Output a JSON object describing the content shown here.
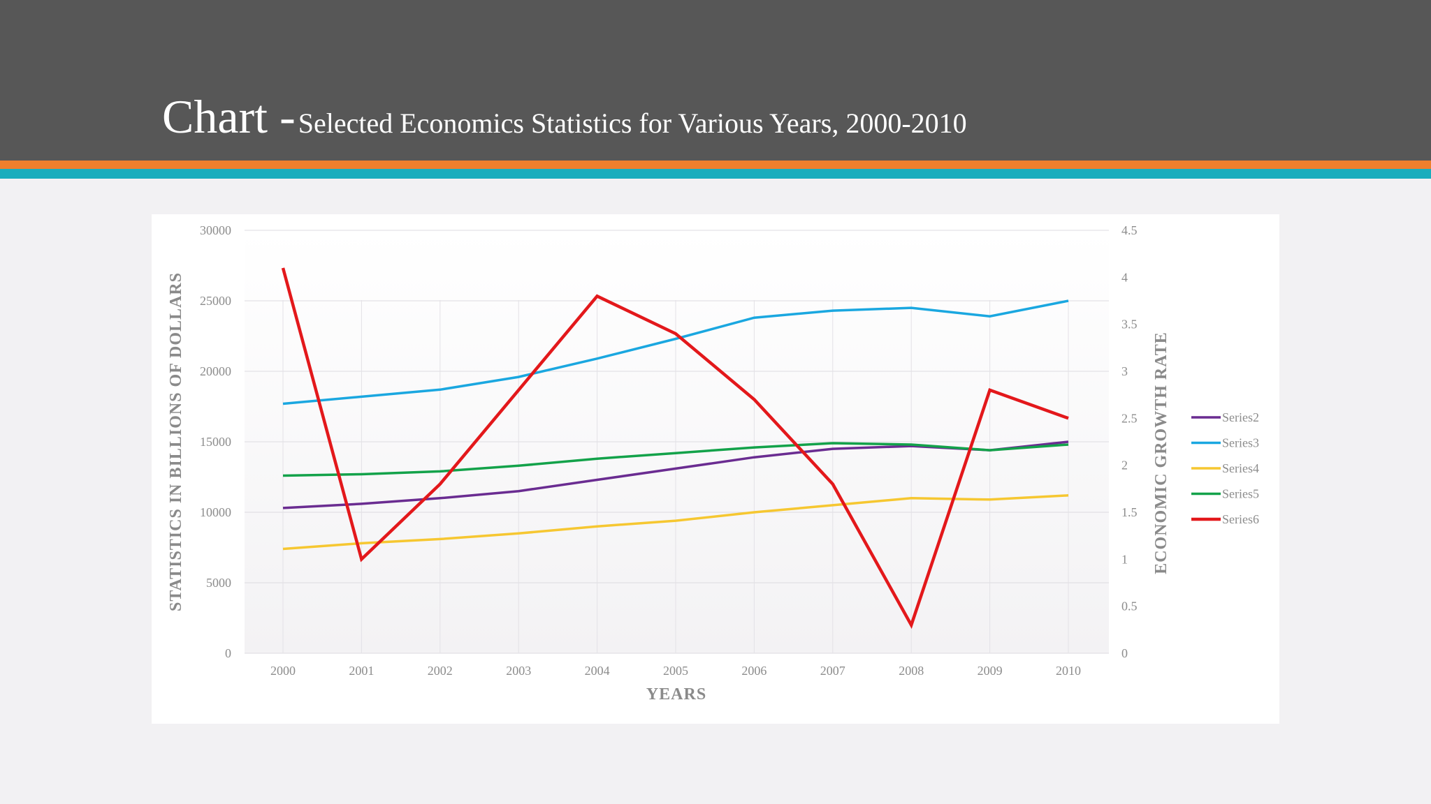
{
  "slide": {
    "title_main": "Chart -",
    "title_sub": "Selected Economics Statistics for Various Years, 2000-2010",
    "header_color": "#575757",
    "stripe_colors": [
      "#ee7f2d",
      "#19adbd"
    ]
  },
  "chart_data": {
    "type": "line",
    "title": "",
    "xlabel": "YEARS",
    "ylabel": "STATISTICS IN BILLIONS OF DOLLARS",
    "y2label": "ECONOMIC GROWTH RATE",
    "categories": [
      "2000",
      "2001",
      "2002",
      "2003",
      "2004",
      "2005",
      "2006",
      "2007",
      "2008",
      "2009",
      "2010"
    ],
    "ylim": [
      0,
      30000
    ],
    "yticks": [
      "0",
      "5000",
      "10000",
      "15000",
      "20000",
      "25000",
      "30000"
    ],
    "y2lim": [
      0,
      4.5
    ],
    "y2ticks": [
      "0",
      "0.5",
      "1",
      "1.5",
      "2",
      "2.5",
      "3",
      "3.5",
      "4",
      "4.5"
    ],
    "grid": true,
    "legend_position": "right",
    "series": [
      {
        "name": "Series2",
        "axis": "left",
        "color": "#6a2c91",
        "values": [
          10300,
          10600,
          11000,
          11500,
          12300,
          13100,
          13900,
          14500,
          14700,
          14400,
          15000
        ]
      },
      {
        "name": "Series3",
        "axis": "left",
        "color": "#1aa7e0",
        "values": [
          17700,
          18200,
          18700,
          19600,
          20900,
          22300,
          23800,
          24300,
          24500,
          23900,
          25000
        ]
      },
      {
        "name": "Series4",
        "axis": "left",
        "color": "#f6c731",
        "values": [
          7400,
          7800,
          8100,
          8500,
          9000,
          9400,
          10000,
          10500,
          11000,
          10900,
          11200
        ]
      },
      {
        "name": "Series5",
        "axis": "left",
        "color": "#13a24a",
        "values": [
          12600,
          12700,
          12900,
          13300,
          13800,
          14200,
          14600,
          14900,
          14800,
          14400,
          14800
        ]
      },
      {
        "name": "Series6",
        "axis": "right",
        "color": "#e3181b",
        "values": [
          4.1,
          1.0,
          1.8,
          2.8,
          3.8,
          3.4,
          2.7,
          1.8,
          0.3,
          2.8,
          2.5
        ]
      }
    ]
  }
}
